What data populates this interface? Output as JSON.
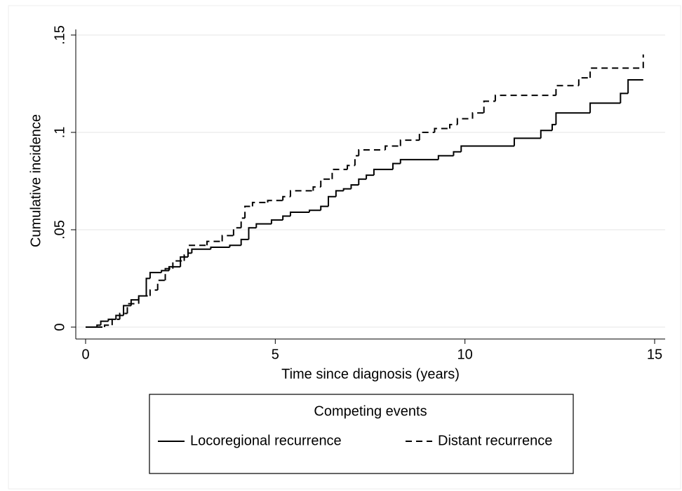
{
  "chart_data": {
    "type": "line",
    "drawstyle": "steps-post",
    "xlabel": "Time since diagnosis (years)",
    "ylabel": "Cumulative incidence",
    "xlim": [
      0,
      15
    ],
    "xticks": [
      0,
      5,
      10,
      15
    ],
    "ylim": [
      0,
      0.15
    ],
    "yticks": [
      0,
      {
        "value": 0.05,
        "label": ".05"
      },
      {
        "value": 0.1,
        "label": ".1"
      },
      {
        "value": 0.15,
        "label": ".15"
      }
    ],
    "grid": true,
    "legend_title": "Competing events",
    "legend": "bottom",
    "series": [
      {
        "name": "Locoregional recurrence",
        "color": "#000000",
        "dash": "solid",
        "x": [
          0,
          0.3,
          0.4,
          0.6,
          0.8,
          1.0,
          1.2,
          1.4,
          1.6,
          1.7,
          2.0,
          2.2,
          2.5,
          2.7,
          2.8,
          3.3,
          3.8,
          4.1,
          4.3,
          4.5,
          4.9,
          5.2,
          5.4,
          5.9,
          6.2,
          6.4,
          6.6,
          6.8,
          7.0,
          7.2,
          7.4,
          7.6,
          8.1,
          8.3,
          9.3,
          9.7,
          9.9,
          11.3,
          12.0,
          12.3,
          12.4,
          13.3,
          14.1,
          14.3,
          14.7
        ],
        "values": [
          0,
          0.001,
          0.003,
          0.004,
          0.006,
          0.011,
          0.014,
          0.016,
          0.025,
          0.028,
          0.029,
          0.031,
          0.036,
          0.038,
          0.04,
          0.041,
          0.042,
          0.045,
          0.051,
          0.053,
          0.055,
          0.057,
          0.059,
          0.06,
          0.062,
          0.067,
          0.07,
          0.071,
          0.073,
          0.076,
          0.078,
          0.081,
          0.084,
          0.086,
          0.088,
          0.09,
          0.093,
          0.097,
          0.101,
          0.104,
          0.11,
          0.115,
          0.12,
          0.127,
          0.127
        ]
      },
      {
        "name": "Distant recurrence",
        "color": "#000000",
        "dash": "dashed",
        "x": [
          0,
          0.5,
          0.7,
          0.9,
          1.1,
          1.4,
          1.7,
          1.9,
          2.1,
          2.3,
          2.6,
          2.7,
          3.2,
          3.6,
          3.9,
          4.1,
          4.2,
          4.4,
          4.8,
          5.2,
          5.4,
          6.0,
          6.2,
          6.5,
          6.9,
          7.1,
          7.2,
          7.9,
          8.3,
          8.8,
          9.2,
          9.6,
          9.8,
          10.2,
          10.5,
          10.8,
          12.4,
          13.0,
          13.3,
          14.7
        ],
        "values": [
          0,
          0.001,
          0.004,
          0.007,
          0.012,
          0.016,
          0.019,
          0.024,
          0.03,
          0.034,
          0.037,
          0.042,
          0.044,
          0.047,
          0.051,
          0.056,
          0.062,
          0.064,
          0.065,
          0.067,
          0.07,
          0.072,
          0.076,
          0.081,
          0.083,
          0.088,
          0.091,
          0.093,
          0.096,
          0.1,
          0.102,
          0.104,
          0.107,
          0.11,
          0.116,
          0.119,
          0.124,
          0.128,
          0.133,
          0.14
        ]
      }
    ]
  }
}
